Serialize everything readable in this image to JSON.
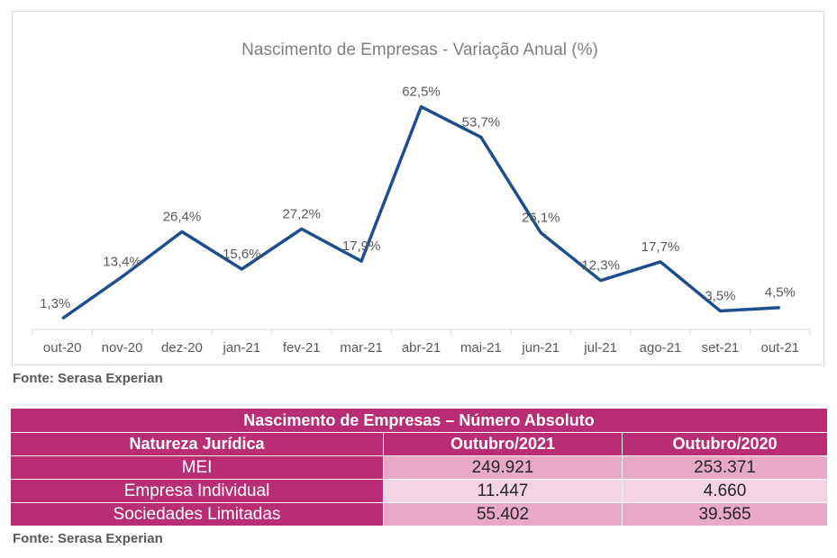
{
  "chart_data": {
    "type": "line",
    "title": "Nascimento de Empresas - Variação Anual (%)",
    "categories": [
      "out-20",
      "nov-20",
      "dez-20",
      "jan-21",
      "fev-21",
      "mar-21",
      "abr-21",
      "mai-21",
      "jun-21",
      "jul-21",
      "ago-21",
      "set-21",
      "out-21"
    ],
    "values": [
      1.3,
      13.4,
      26.4,
      15.6,
      27.2,
      17.9,
      62.5,
      53.7,
      26.1,
      12.3,
      17.7,
      3.5,
      4.5
    ],
    "data_labels": [
      "1,3%",
      "13,4%",
      "26,4%",
      "15,6%",
      "27,2%",
      "17,9%",
      "62,5%",
      "53,7%",
      "26,1%",
      "12,3%",
      "17,7%",
      "3,5%",
      "4,5%"
    ],
    "ylim": [
      0,
      65
    ],
    "series_color": "#1f4e8c",
    "grid": false,
    "legend": "none"
  },
  "source_label": "Fonte: Serasa Experian",
  "table": {
    "title": "Nascimento de Empresas – Número Absoluto",
    "headers": [
      "Natureza Jurídica",
      "Outubro/2021",
      "Outubro/2020"
    ],
    "rows": [
      {
        "name": "MEI",
        "oct2021": "249.921",
        "oct2020": "253.371"
      },
      {
        "name": "Empresa Individual",
        "oct2021": "11.447",
        "oct2020": "4.660"
      },
      {
        "name": "Sociedades Limitadas",
        "oct2021": "55.402",
        "oct2020": "39.565"
      }
    ]
  },
  "colors": {
    "table_header": "#b92d75",
    "table_row_dark": "#e8a9c7",
    "table_row_light": "#f4d3e2"
  }
}
